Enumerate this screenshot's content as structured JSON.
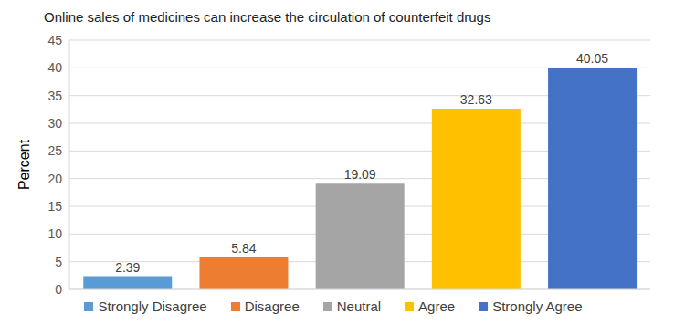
{
  "chart_data": {
    "type": "bar",
    "title": "Online sales of medicines can increase the circulation of counterfeit drugs",
    "y_label": "Percent",
    "categories": [
      "Strongly Disagree",
      "Disagree",
      "Neutral",
      "Agree",
      "Strongly Agree"
    ],
    "values": [
      2.39,
      5.84,
      19.09,
      32.63,
      40.05
    ],
    "colors": [
      "#5b9bd5",
      "#ed7d31",
      "#a5a5a5",
      "#ffc000",
      "#4472c4"
    ],
    "ylim": [
      0,
      45
    ],
    "yticks": [
      0,
      5,
      10,
      15,
      20,
      25,
      30,
      35,
      40,
      45
    ],
    "grid": true,
    "data_labels": true,
    "legend": "bottom",
    "tick_labels": "y"
  }
}
